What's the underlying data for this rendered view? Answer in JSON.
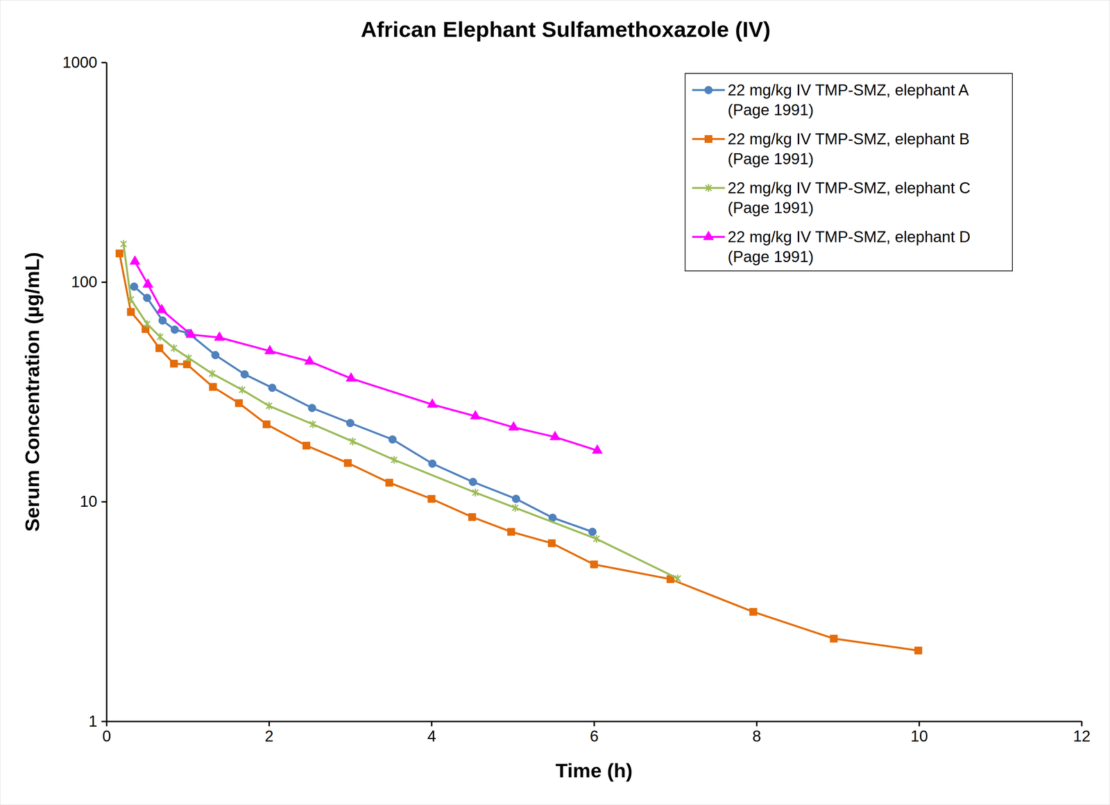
{
  "chart_data": {
    "type": "line",
    "title": "African Elephant Sulfamethoxazole (IV)",
    "x_label": "Time (h)",
    "y_label": "Serum Concentration (µg/mL)",
    "log": "y",
    "grid": false,
    "legend": "top-right",
    "xlim": [
      0,
      12
    ],
    "xticks": [
      0,
      2,
      4,
      6,
      8,
      10,
      12
    ],
    "ylim": [
      1,
      1000
    ],
    "yticks": [
      1,
      10,
      100,
      1000
    ],
    "series": [
      {
        "name": "22 mg/kg IV TMP-SMZ, elephant A (Page 1991)",
        "color": "#4f81bd",
        "marker": "circle",
        "x": [
          0.34,
          0.5,
          0.69,
          0.84,
          1.01,
          1.34,
          1.7,
          2.04,
          2.53,
          3.0,
          3.52,
          4.01,
          4.51,
          5.04,
          5.49,
          5.98
        ],
        "values": [
          95.3,
          84.7,
          66.8,
          60.7,
          58.5,
          46.5,
          38.0,
          33.0,
          26.7,
          22.8,
          19.2,
          14.9,
          12.3,
          10.3,
          8.45,
          7.29
        ]
      },
      {
        "name": "22 mg/kg IV TMP-SMZ, elephant B (Page 1991)",
        "color": "#e46c0a",
        "marker": "square",
        "x": [
          0.16,
          0.3,
          0.48,
          0.65,
          0.83,
          0.99,
          1.31,
          1.63,
          1.97,
          2.46,
          2.97,
          3.48,
          4.0,
          4.5,
          4.98,
          5.48,
          6.0,
          6.94,
          7.96,
          8.95,
          9.99
        ],
        "values": [
          135,
          73.1,
          61.1,
          50.0,
          42.5,
          42.2,
          33.3,
          28.1,
          22.5,
          18.0,
          15.0,
          12.2,
          10.3,
          8.51,
          7.29,
          6.47,
          5.18,
          4.44,
          3.15,
          2.38,
          2.1
        ]
      },
      {
        "name": "22 mg/kg IV TMP-SMZ, elephant C (Page 1991)",
        "color": "#9bbb59",
        "marker": "asterisk",
        "x": [
          0.21,
          0.3,
          0.5,
          0.66,
          0.83,
          1.01,
          1.3,
          1.67,
          2.0,
          2.54,
          3.03,
          3.54,
          4.54,
          5.03,
          6.03,
          7.03
        ],
        "values": [
          149,
          83.4,
          64.4,
          56.3,
          50.0,
          45.1,
          38.3,
          32.3,
          27.3,
          22.5,
          18.8,
          15.5,
          11.0,
          9.38,
          6.77,
          4.47
        ]
      },
      {
        "name": "22 mg/kg IV TMP-SMZ, elephant D (Page 1991)",
        "color": "#ff00ff",
        "marker": "triangle",
        "x": [
          0.35,
          0.51,
          0.68,
          1.04,
          1.39,
          2.01,
          2.5,
          3.01,
          4.01,
          4.54,
          5.01,
          5.52,
          6.04
        ],
        "values": [
          124,
          97.5,
          74.6,
          57.6,
          55.9,
          48.5,
          43.5,
          36.4,
          27.7,
          24.5,
          21.8,
          19.7,
          17.1
        ]
      }
    ]
  }
}
